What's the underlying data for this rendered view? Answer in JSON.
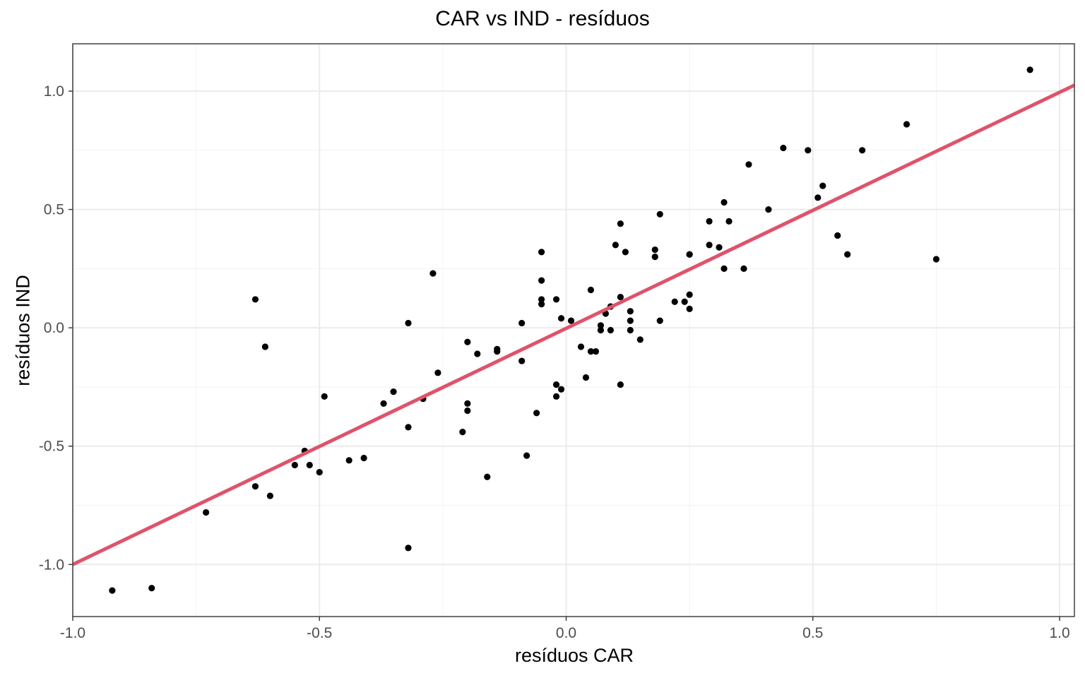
{
  "chart_data": {
    "type": "scatter",
    "title": "CAR vs IND - resíduos",
    "xlabel": "resíduos CAR",
    "ylabel": "resíduos IND",
    "xlim": [
      -1.0,
      1.03
    ],
    "ylim": [
      -1.22,
      1.2
    ],
    "x_ticks": [
      -1.0,
      -0.5,
      0.0,
      0.5,
      1.0
    ],
    "x_tick_labels": [
      "-1.0",
      "-0.5",
      "0.0",
      "0.5",
      "1.0"
    ],
    "y_ticks": [
      -1.0,
      -0.5,
      0.0,
      0.5,
      1.0
    ],
    "y_tick_labels": [
      "-1.0",
      "-0.5",
      "0.0",
      "0.5",
      "1.0"
    ],
    "grid": true,
    "point_color": "#000000",
    "line_color": "#DF536B",
    "fit_line": {
      "x": [
        -1.0,
        1.03
      ],
      "y": [
        -1.0,
        1.025
      ]
    },
    "points": [
      {
        "x": -0.92,
        "y": -1.11
      },
      {
        "x": -0.84,
        "y": -1.1
      },
      {
        "x": -0.73,
        "y": -0.78
      },
      {
        "x": -0.63,
        "y": 0.12
      },
      {
        "x": -0.61,
        "y": -0.08
      },
      {
        "x": -0.63,
        "y": -0.67
      },
      {
        "x": -0.6,
        "y": -0.71
      },
      {
        "x": -0.55,
        "y": -0.58
      },
      {
        "x": -0.53,
        "y": -0.52
      },
      {
        "x": -0.52,
        "y": -0.58
      },
      {
        "x": -0.5,
        "y": -0.61
      },
      {
        "x": -0.49,
        "y": -0.29
      },
      {
        "x": -0.44,
        "y": -0.56
      },
      {
        "x": -0.41,
        "y": -0.55
      },
      {
        "x": -0.37,
        "y": -0.32
      },
      {
        "x": -0.35,
        "y": -0.27
      },
      {
        "x": -0.32,
        "y": 0.02
      },
      {
        "x": -0.32,
        "y": -0.42
      },
      {
        "x": -0.32,
        "y": -0.93
      },
      {
        "x": -0.29,
        "y": -0.3
      },
      {
        "x": -0.27,
        "y": 0.23
      },
      {
        "x": -0.26,
        "y": -0.19
      },
      {
        "x": -0.21,
        "y": -0.44
      },
      {
        "x": -0.2,
        "y": -0.06
      },
      {
        "x": -0.2,
        "y": -0.32
      },
      {
        "x": -0.2,
        "y": -0.35
      },
      {
        "x": -0.18,
        "y": -0.11
      },
      {
        "x": -0.16,
        "y": -0.63
      },
      {
        "x": -0.14,
        "y": -0.1
      },
      {
        "x": -0.14,
        "y": -0.09
      },
      {
        "x": -0.09,
        "y": -0.14
      },
      {
        "x": -0.09,
        "y": 0.02
      },
      {
        "x": -0.08,
        "y": -0.54
      },
      {
        "x": -0.06,
        "y": -0.36
      },
      {
        "x": -0.05,
        "y": 0.32
      },
      {
        "x": -0.05,
        "y": 0.2
      },
      {
        "x": -0.05,
        "y": 0.12
      },
      {
        "x": -0.05,
        "y": 0.1
      },
      {
        "x": -0.02,
        "y": 0.12
      },
      {
        "x": -0.02,
        "y": -0.24
      },
      {
        "x": -0.02,
        "y": -0.29
      },
      {
        "x": -0.01,
        "y": 0.04
      },
      {
        "x": -0.01,
        "y": -0.26
      },
      {
        "x": 0.01,
        "y": 0.03
      },
      {
        "x": 0.03,
        "y": -0.08
      },
      {
        "x": 0.04,
        "y": -0.21
      },
      {
        "x": 0.05,
        "y": 0.16
      },
      {
        "x": 0.05,
        "y": -0.1
      },
      {
        "x": 0.06,
        "y": -0.1
      },
      {
        "x": 0.07,
        "y": 0.01
      },
      {
        "x": 0.07,
        "y": -0.01
      },
      {
        "x": 0.08,
        "y": 0.06
      },
      {
        "x": 0.09,
        "y": 0.09
      },
      {
        "x": 0.09,
        "y": -0.01
      },
      {
        "x": 0.1,
        "y": 0.35
      },
      {
        "x": 0.11,
        "y": 0.44
      },
      {
        "x": 0.11,
        "y": -0.24
      },
      {
        "x": 0.11,
        "y": 0.13
      },
      {
        "x": 0.12,
        "y": 0.32
      },
      {
        "x": 0.13,
        "y": 0.07
      },
      {
        "x": 0.13,
        "y": 0.03
      },
      {
        "x": 0.13,
        "y": -0.01
      },
      {
        "x": 0.15,
        "y": -0.05
      },
      {
        "x": 0.18,
        "y": 0.3
      },
      {
        "x": 0.18,
        "y": 0.33
      },
      {
        "x": 0.19,
        "y": 0.48
      },
      {
        "x": 0.19,
        "y": 0.03
      },
      {
        "x": 0.22,
        "y": 0.11
      },
      {
        "x": 0.24,
        "y": 0.11
      },
      {
        "x": 0.25,
        "y": 0.31
      },
      {
        "x": 0.25,
        "y": 0.31
      },
      {
        "x": 0.25,
        "y": 0.14
      },
      {
        "x": 0.25,
        "y": 0.08
      },
      {
        "x": 0.29,
        "y": 0.35
      },
      {
        "x": 0.29,
        "y": 0.45
      },
      {
        "x": 0.31,
        "y": 0.34
      },
      {
        "x": 0.32,
        "y": 0.53
      },
      {
        "x": 0.32,
        "y": 0.25
      },
      {
        "x": 0.33,
        "y": 0.45
      },
      {
        "x": 0.36,
        "y": 0.25
      },
      {
        "x": 0.37,
        "y": 0.69
      },
      {
        "x": 0.41,
        "y": 0.5
      },
      {
        "x": 0.44,
        "y": 0.76
      },
      {
        "x": 0.49,
        "y": 0.75
      },
      {
        "x": 0.51,
        "y": 0.55
      },
      {
        "x": 0.52,
        "y": 0.6
      },
      {
        "x": 0.55,
        "y": 0.39
      },
      {
        "x": 0.57,
        "y": 0.31
      },
      {
        "x": 0.6,
        "y": 0.75
      },
      {
        "x": 0.69,
        "y": 0.86
      },
      {
        "x": 0.75,
        "y": 0.29
      },
      {
        "x": 0.94,
        "y": 1.09
      }
    ]
  }
}
